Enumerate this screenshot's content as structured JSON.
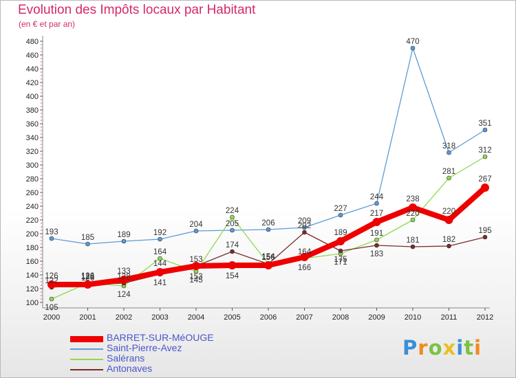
{
  "chart_data": {
    "type": "line",
    "title": "Evolution des Impôts locaux par Habitant",
    "subtitle": "(en € et par an)",
    "x": [
      "2000",
      "2001",
      "2002",
      "2003",
      "2004",
      "2005",
      "2006",
      "2007",
      "2008",
      "2009",
      "2010",
      "2011",
      "2012"
    ],
    "ylim": [
      100,
      480
    ],
    "yticks": [
      100,
      120,
      140,
      160,
      180,
      200,
      220,
      240,
      260,
      280,
      300,
      320,
      340,
      360,
      380,
      400,
      420,
      440,
      460,
      480
    ],
    "grid": false,
    "legend_position": "bottom-left",
    "series": [
      {
        "name": "Saint-Pierre-Avez",
        "color": "#5b9bd5",
        "width": 1.3,
        "values": [
          193,
          185,
          189,
          192,
          204,
          205,
          206,
          209,
          227,
          244,
          470,
          318,
          351
        ],
        "labels_above": [
          true,
          true,
          true,
          true,
          true,
          true,
          true,
          true,
          true,
          true,
          true,
          true,
          true
        ]
      },
      {
        "name": "Salérans",
        "color": "#90d850",
        "width": 1.3,
        "values": [
          105,
          128,
          124,
          164,
          145,
          224,
          156,
          164,
          171,
          191,
          220,
          281,
          312
        ],
        "labels_above": [
          false,
          true,
          false,
          true,
          false,
          true,
          true,
          true,
          false,
          true,
          true,
          true,
          true
        ]
      },
      {
        "name": "Antonaves",
        "color": "#7a2a2a",
        "width": 1.3,
        "values": [
          122,
          126,
          128,
          141,
          153,
          174,
          156,
          202,
          175,
          183,
          181,
          182,
          195
        ],
        "labels_above": [
          true,
          true,
          true,
          false,
          true,
          true,
          true,
          true,
          false,
          false,
          true,
          true,
          true
        ]
      },
      {
        "name": "BARRET-SUR-MéOUGE",
        "color": "#ee0000",
        "width": 8,
        "values": [
          126,
          126,
          133,
          144,
          153,
          154,
          154,
          166,
          189,
          217,
          238,
          220,
          267
        ],
        "labels_above": [
          true,
          true,
          true,
          true,
          false,
          false,
          true,
          false,
          true,
          true,
          true,
          true,
          true
        ]
      }
    ]
  },
  "legend": {
    "items": [
      {
        "label": "BARRET-SUR-MéOUGE",
        "color": "#ee0000"
      },
      {
        "label": "Saint-Pierre-Avez",
        "color": "#5b9bd5"
      },
      {
        "label": "Salérans",
        "color": "#90d850"
      },
      {
        "label": "Antonaves",
        "color": "#7a2a2a"
      }
    ]
  },
  "brand": {
    "logo_text": "Proxiti"
  }
}
